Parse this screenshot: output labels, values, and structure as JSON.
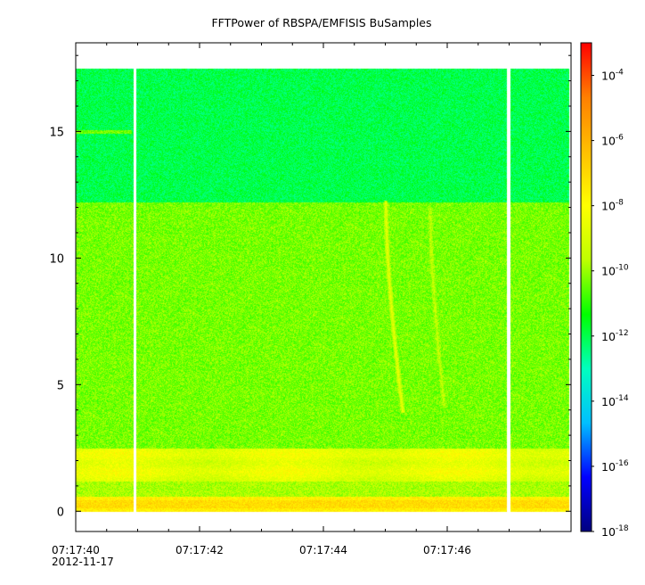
{
  "chart_data": {
    "type": "heatmap",
    "title": "FFTPower of RBSPA/EMFISIS  BuSamples",
    "x": {
      "range": [
        "07:17:40.0",
        "07:17:48.0"
      ],
      "ticks": [
        "07:17:40",
        "07:17:42",
        "07:17:44",
        "07:17:46"
      ],
      "start_date_label": "2012-11-17"
    },
    "y": {
      "range": [
        -0.8,
        18.5
      ],
      "ticks": [
        0,
        5,
        10,
        15
      ],
      "tick_labels": [
        "0",
        "5",
        "10",
        "15"
      ]
    },
    "colorbar": {
      "scale": "log",
      "range": [
        1e-18,
        0.001
      ],
      "ticks": [
        {
          "base": "10",
          "exp": "-18"
        },
        {
          "base": "10",
          "exp": "-16"
        },
        {
          "base": "10",
          "exp": "-14"
        },
        {
          "base": "10",
          "exp": "-12"
        },
        {
          "base": "10",
          "exp": "-10"
        },
        {
          "base": "10",
          "exp": "-8"
        },
        {
          "base": "10",
          "exp": "-6"
        },
        {
          "base": "10",
          "exp": "-4"
        }
      ]
    },
    "data_gaps_s": [
      0.95,
      6.98
    ],
    "data_extent": {
      "x": [
        0.0,
        7.97
      ],
      "y": [
        0.0,
        17.5
      ]
    },
    "bands": [
      {
        "y": [
          12.2,
          17.5
        ],
        "log_power": -12.0
      },
      {
        "y": [
          2.5,
          12.2
        ],
        "log_power": -10.3
      },
      {
        "y": [
          1.2,
          2.5
        ],
        "log_power": -8.7
      },
      {
        "y": [
          0.6,
          1.2
        ],
        "log_power": -9.8
      },
      {
        "y": [
          0.0,
          0.6
        ],
        "log_power": -7.6
      }
    ],
    "features": [
      {
        "type": "whistler",
        "x": [
          5.0,
          5.28
        ],
        "y": [
          12.3,
          3.9
        ],
        "log_power": -8.6
      },
      {
        "type": "whistler",
        "x": [
          5.72,
          5.95
        ],
        "y": [
          12.0,
          4.1
        ],
        "log_power": -9.4
      },
      {
        "type": "line",
        "x": [
          0.0,
          0.9
        ],
        "y": 15.0,
        "log_power": -10.4
      }
    ],
    "colorscale": [
      "#00007f",
      "#0000ff",
      "#00bfff",
      "#00ffbf",
      "#00ff00",
      "#bfff00",
      "#ffff00",
      "#ffbf00",
      "#ff7f00",
      "#ff0000"
    ]
  }
}
